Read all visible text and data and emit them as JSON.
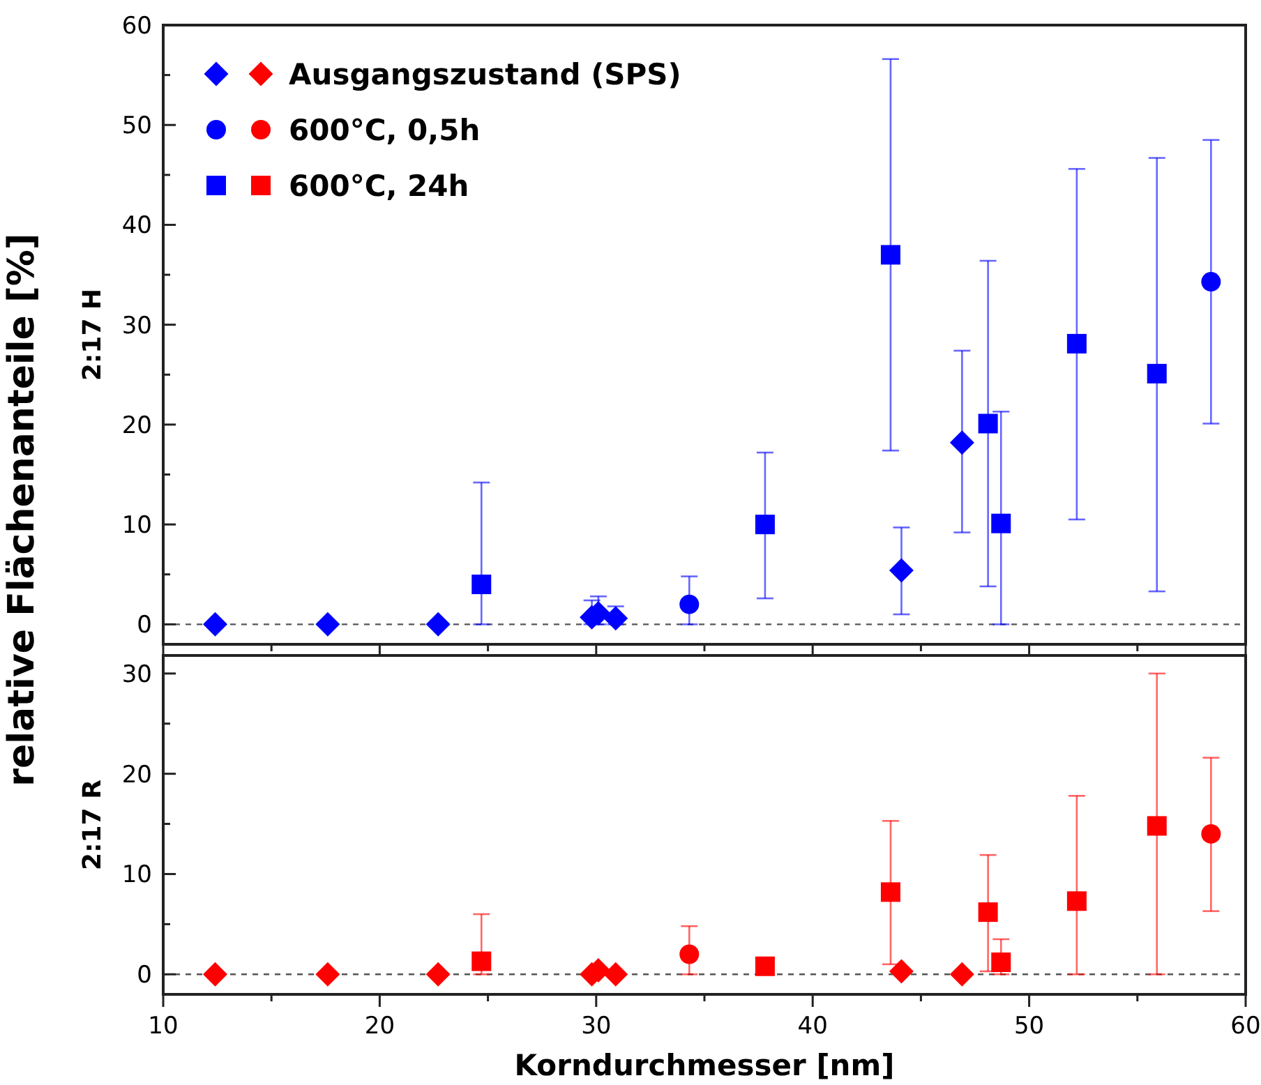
{
  "chart_data": [
    {
      "type": "scatter",
      "ylabel": "2:17 H",
      "annotations": [
        "relative Flächenanteile  [%]"
      ],
      "xlim": [
        10,
        60
      ],
      "xticks": [
        10,
        {
          "value": 15,
          "label": null
        },
        20,
        {
          "value": 25,
          "label": null
        },
        30,
        {
          "value": 35,
          "label": null
        },
        40,
        {
          "value": 45,
          "label": null
        },
        50,
        {
          "value": 55,
          "label": null
        },
        60
      ],
      "ylim": [
        -2,
        60
      ],
      "yticks": [
        0,
        {
          "value": 5,
          "label": null
        },
        10,
        {
          "value": 15,
          "label": null
        },
        20,
        {
          "value": 25,
          "label": null
        },
        30,
        {
          "value": 35,
          "label": null
        },
        40,
        {
          "value": 45,
          "label": null
        },
        50,
        {
          "value": 55,
          "label": null
        },
        60
      ],
      "tick_labels": "y",
      "legend": "top left",
      "grid": false,
      "ref_lines": [
        {
          "axis": "y",
          "value": 0,
          "color": "#555555",
          "line_style": "dashed"
        }
      ],
      "series": [
        {
          "name": "Ausgangszustand (SPS)",
          "color": "#0000ff",
          "marker": "diamond",
          "x": [
            12.4,
            17.6,
            22.7,
            29.8,
            30.1,
            30.9,
            44.1,
            46.9
          ],
          "values": [
            0,
            0,
            0,
            0.7,
            1.1,
            0.6,
            5.4,
            18.2
          ],
          "errors": [
            null,
            null,
            null,
            [
              0,
              2.4
            ],
            [
              0,
              2.8
            ],
            [
              0,
              1.8
            ],
            [
              1.0,
              9.7
            ],
            [
              9.2,
              27.4
            ]
          ]
        },
        {
          "name": "600°C, 0,5h",
          "color": "#0000ff",
          "marker": "circle",
          "x": [
            34.3,
            58.4
          ],
          "values": [
            2.0,
            34.3
          ],
          "errors": [
            [
              0,
              4.8
            ],
            [
              20.1,
              48.5
            ]
          ]
        },
        {
          "name": "600°C, 24h",
          "color": "#0000ff",
          "marker": "square",
          "x": [
            24.7,
            37.8,
            43.6,
            48.1,
            48.7,
            52.2,
            55.9
          ],
          "values": [
            4.0,
            10.0,
            37.0,
            20.1,
            10.1,
            28.1,
            25.1
          ],
          "errors": [
            [
              0,
              14.2
            ],
            [
              2.6,
              17.2
            ],
            [
              17.4,
              56.6
            ],
            [
              3.8,
              36.4
            ],
            [
              0,
              21.3
            ],
            [
              10.5,
              45.6
            ],
            [
              3.3,
              46.7
            ]
          ]
        }
      ]
    },
    {
      "type": "scatter",
      "ylabel": "2:17 R",
      "xlabel": "Korndurchmesser [nm]",
      "xlim": [
        10,
        60
      ],
      "xticks": [
        10,
        {
          "value": 15,
          "label": null
        },
        20,
        {
          "value": 25,
          "label": null
        },
        30,
        {
          "value": 35,
          "label": null
        },
        40,
        {
          "value": 45,
          "label": null
        },
        50,
        {
          "value": 55,
          "label": null
        },
        60
      ],
      "ylim": [
        -2,
        31.8
      ],
      "yticks": [
        0,
        {
          "value": 5,
          "label": null
        },
        10,
        {
          "value": 15,
          "label": null
        },
        20,
        {
          "value": 25,
          "label": null
        },
        30
      ],
      "grid": false,
      "ref_lines": [
        {
          "axis": "y",
          "value": 0,
          "color": "#555555",
          "line_style": "dashed"
        }
      ],
      "series": [
        {
          "color": "#ff0000",
          "marker": "diamond",
          "x": [
            12.4,
            17.6,
            22.7,
            29.8,
            30.1,
            30.9,
            44.1,
            46.9
          ],
          "values": [
            0,
            0,
            0,
            0,
            0.4,
            0,
            0.3,
            0
          ]
        },
        {
          "color": "#ff0000",
          "marker": "circle",
          "x": [
            34.3,
            58.4
          ],
          "values": [
            2.0,
            14.0
          ],
          "errors": [
            [
              0,
              4.8
            ],
            [
              6.3,
              21.6
            ]
          ]
        },
        {
          "color": "#ff0000",
          "marker": "square",
          "x": [
            24.7,
            37.8,
            43.6,
            48.1,
            48.7,
            52.2,
            55.9
          ],
          "values": [
            1.3,
            0.8,
            8.2,
            6.2,
            1.2,
            7.3,
            14.8
          ],
          "errors": [
            [
              0,
              6.0
            ],
            [
              0.8,
              1.5
            ],
            [
              1.0,
              15.3
            ],
            [
              0.3,
              11.9
            ],
            [
              0,
              3.5
            ],
            [
              0,
              17.8
            ],
            [
              0,
              30.0
            ]
          ]
        }
      ]
    }
  ]
}
